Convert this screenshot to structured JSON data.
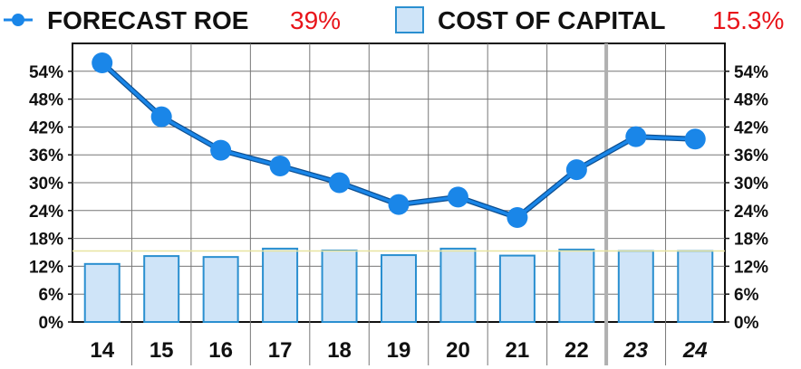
{
  "legend": {
    "roe_label": "FORECAST ROE",
    "roe_value": "39%",
    "cost_label": "COST OF CAPITAL",
    "cost_value": "15.3%"
  },
  "colors": {
    "roe_line": "#1a86e8",
    "bar_fill": "#cfe4f8",
    "bar_stroke": "#2a8fd0",
    "value_red": "#e8141a",
    "grid": "#777777",
    "forecast_divider": "#b0b0b0",
    "cost_line": "#e8e4a0"
  },
  "chart_data": {
    "type": "bar",
    "categories": [
      "14",
      "15",
      "16",
      "17",
      "18",
      "19",
      "20",
      "21",
      "22",
      "23",
      "24"
    ],
    "forecast_categories": [
      "23",
      "24"
    ],
    "series": [
      {
        "name": "FORECAST ROE",
        "type": "line",
        "values": [
          55.8,
          44.2,
          37.0,
          33.6,
          30.0,
          25.3,
          26.9,
          22.5,
          32.8,
          39.9,
          39.4
        ]
      },
      {
        "name": "COST OF CAPITAL",
        "type": "bar",
        "values": [
          12.5,
          14.2,
          14.0,
          15.8,
          15.4,
          14.4,
          15.8,
          14.3,
          15.6,
          15.3,
          15.3
        ]
      }
    ],
    "cost_of_capital_reference": 15.3,
    "ylim": [
      0,
      60
    ],
    "yticks": [
      0,
      6,
      12,
      18,
      24,
      30,
      36,
      42,
      48,
      54
    ],
    "ytick_labels": [
      "0%",
      "6%",
      "12%",
      "18%",
      "24%",
      "30%",
      "36%",
      "42%",
      "48%",
      "54%"
    ],
    "y_axis_both_sides": true,
    "grid": true,
    "legend_position": "top",
    "title": "",
    "xlabel": "",
    "ylabel": ""
  }
}
